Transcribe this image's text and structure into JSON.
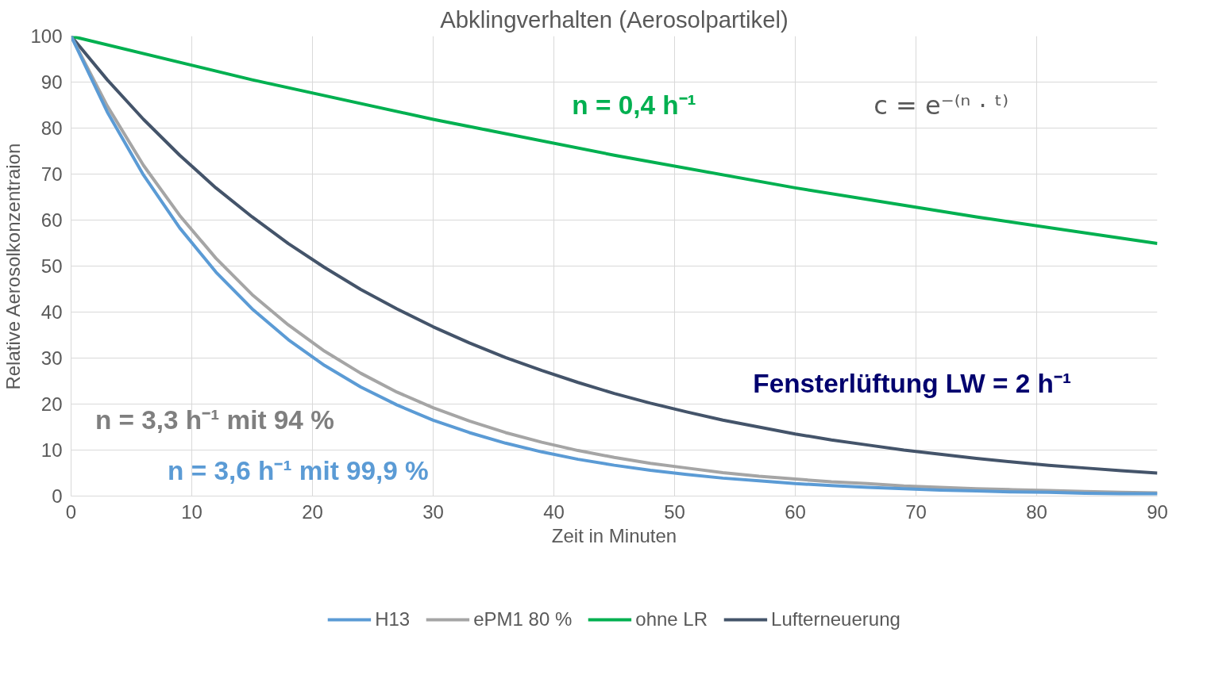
{
  "chart_data": {
    "type": "line",
    "title": "Abklingverhalten (Aerosolpartikel)",
    "xlabel": "Zeit in Minuten",
    "ylabel": "Relative Aerosolkonzentraion",
    "x": [
      0,
      3,
      6,
      9,
      12,
      15,
      18,
      21,
      24,
      27,
      30,
      33,
      36,
      39,
      42,
      45,
      48,
      51,
      54,
      57,
      60,
      63,
      66,
      69,
      72,
      75,
      78,
      81,
      84,
      87,
      90
    ],
    "series": [
      {
        "name": "H13",
        "color": "#5b9bd5",
        "values": [
          100,
          83.5,
          69.8,
          58.3,
          48.7,
          40.7,
          34.0,
          28.4,
          23.7,
          19.8,
          16.5,
          13.8,
          11.5,
          9.6,
          8.0,
          6.7,
          5.6,
          4.7,
          3.9,
          3.3,
          2.7,
          2.3,
          1.9,
          1.6,
          1.3,
          1.1,
          0.9,
          0.8,
          0.6,
          0.5,
          0.5
        ]
      },
      {
        "name": "ePM1 80 %",
        "color": "#a5a5a5",
        "values": [
          100,
          84.8,
          71.9,
          61.0,
          51.7,
          43.8,
          37.2,
          31.5,
          26.7,
          22.6,
          19.2,
          16.3,
          13.8,
          11.7,
          9.9,
          8.4,
          7.1,
          6.1,
          5.1,
          4.3,
          3.7,
          3.1,
          2.7,
          2.2,
          1.9,
          1.6,
          1.4,
          1.2,
          1.0,
          0.8,
          0.7
        ]
      },
      {
        "name": "ohne LR",
        "color": "#00b050",
        "x": [
          0,
          15,
          30,
          45,
          60,
          75,
          90
        ],
        "values": [
          100,
          90.5,
          81.9,
          74.1,
          67.0,
          60.7,
          54.9
        ]
      },
      {
        "name": "Lufterneuerung",
        "color": "#44546a",
        "values": [
          100,
          90.5,
          81.9,
          74.1,
          67.0,
          60.7,
          54.9,
          49.7,
          44.9,
          40.7,
          36.8,
          33.3,
          30.1,
          27.3,
          24.7,
          22.3,
          20.2,
          18.3,
          16.5,
          15.0,
          13.5,
          12.2,
          11.1,
          10.0,
          9.1,
          8.2,
          7.4,
          6.7,
          6.1,
          5.5,
          5.0
        ]
      }
    ],
    "annotations": [
      "n = 3,6 h⁻¹ mit 99,9 %",
      "n = 3,3 h⁻¹ mit 94 %",
      "n = 0,4 h⁻¹",
      "Fensterlüftung LW = 2 h⁻¹",
      "c = e⁻⁽ⁿ · ᵗ⁾"
    ],
    "xlim": [
      0,
      90
    ],
    "xticks": [
      0,
      10,
      20,
      30,
      40,
      50,
      60,
      70,
      80,
      90
    ],
    "ylim": [
      0,
      100
    ],
    "yticks": [
      0,
      10,
      20,
      30,
      40,
      50,
      60,
      70,
      80,
      90,
      100
    ],
    "grid": true,
    "legend": "bottom",
    "marker": "none",
    "line_style": "solid"
  }
}
